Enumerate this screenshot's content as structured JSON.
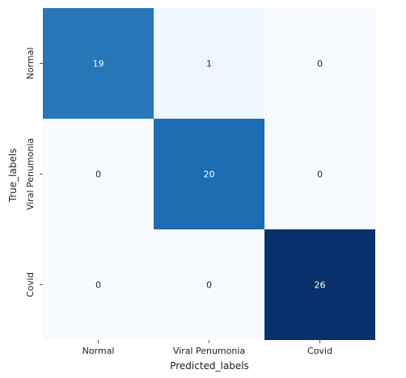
{
  "chart_data": {
    "type": "heatmap",
    "title": "",
    "xlabel": "Predicted_labels",
    "ylabel": "True_labels",
    "x_categories": [
      "Normal",
      "Viral Penumonia",
      "Covid"
    ],
    "y_categories": [
      "Normal",
      "Viral Penumonia",
      "Covid"
    ],
    "matrix": [
      [
        19,
        1,
        0
      ],
      [
        0,
        20,
        0
      ],
      [
        0,
        0,
        26
      ]
    ],
    "colormap": "Blues",
    "vmin": 0,
    "vmax": 26,
    "colorbar": false,
    "grid": false
  }
}
